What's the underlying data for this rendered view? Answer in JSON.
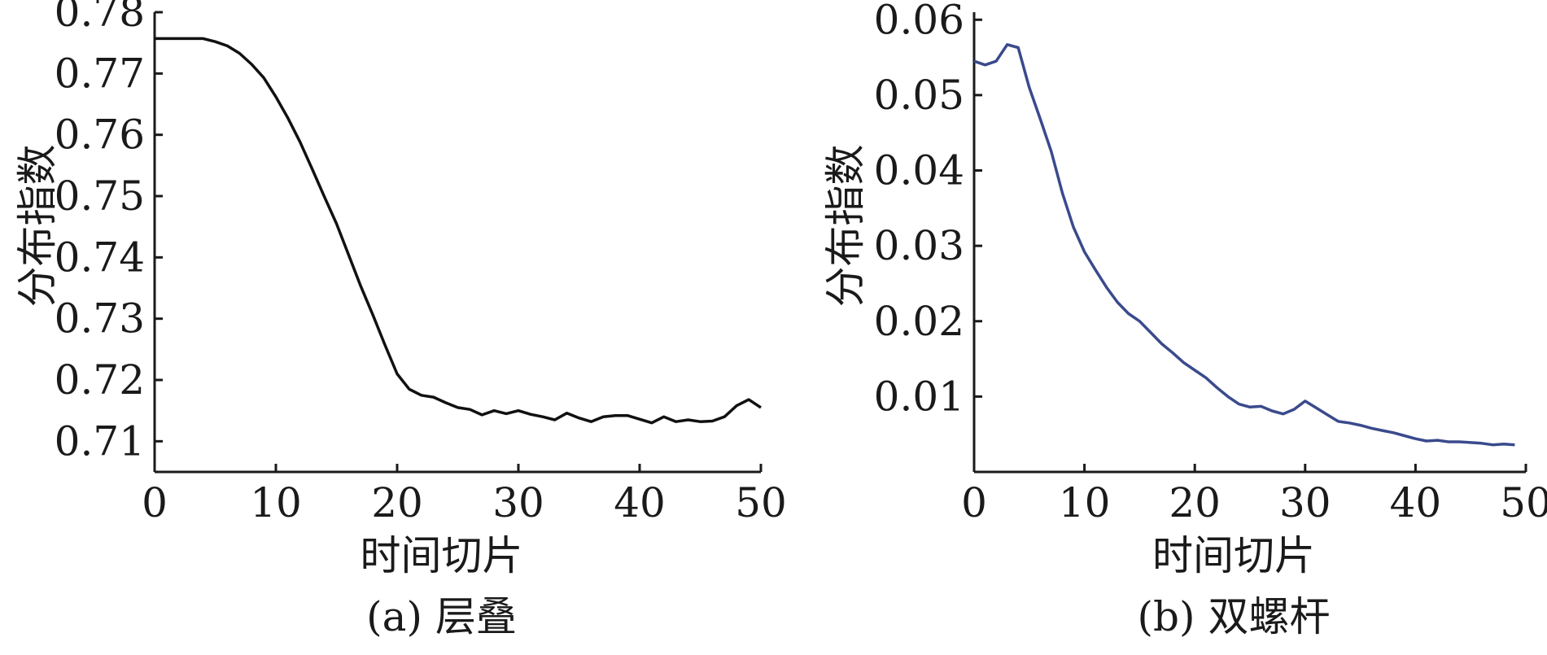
{
  "chart_data": [
    {
      "type": "line",
      "panel": "a",
      "caption": "(a) 层叠",
      "xlabel": "时间切片",
      "ylabel": "分布指数",
      "xlim": [
        0,
        50
      ],
      "ylim": [
        0.705,
        0.78
      ],
      "x_ticks": [
        "0",
        "10",
        "20",
        "30",
        "40",
        "50"
      ],
      "y_ticks": [
        "0.71",
        "0.72",
        "0.73",
        "0.74",
        "0.75",
        "0.76",
        "0.77",
        "0.78"
      ],
      "grid": false,
      "legend": "none",
      "color": "#111111",
      "series": [
        {
          "x": [
            0,
            1,
            2,
            3,
            4,
            5,
            6,
            7,
            8,
            9,
            10,
            11,
            12,
            13,
            14,
            15,
            16,
            17,
            18,
            19,
            20,
            21,
            22,
            23,
            24,
            25,
            26,
            27,
            28,
            29,
            30,
            31,
            32,
            33,
            34,
            35,
            36,
            37,
            38,
            39,
            40,
            41,
            42,
            43,
            44,
            45,
            46,
            47,
            48,
            49,
            50
          ],
          "values": [
            0.7757,
            0.7757,
            0.7757,
            0.7757,
            0.7757,
            0.7752,
            0.7745,
            0.7733,
            0.7715,
            0.7693,
            0.7662,
            0.7627,
            0.7588,
            0.7544,
            0.7499,
            0.7455,
            0.7404,
            0.7353,
            0.7306,
            0.7257,
            0.721,
            0.7185,
            0.7175,
            0.7172,
            0.7163,
            0.7155,
            0.7152,
            0.7143,
            0.715,
            0.7145,
            0.715,
            0.7144,
            0.714,
            0.7135,
            0.7146,
            0.7138,
            0.7132,
            0.714,
            0.7142,
            0.7142,
            0.7136,
            0.713,
            0.714,
            0.7132,
            0.7135,
            0.7132,
            0.7133,
            0.714,
            0.7158,
            0.7168,
            0.7155
          ]
        }
      ]
    },
    {
      "type": "line",
      "panel": "b",
      "caption": "(b) 双螺杆",
      "xlabel": "时间切片",
      "ylabel": "分布指数",
      "xlim": [
        0,
        50
      ],
      "ylim": [
        0,
        0.061
      ],
      "x_ticks": [
        "0",
        "10",
        "20",
        "30",
        "40",
        "50"
      ],
      "y_ticks": [
        "0.01",
        "0.02",
        "0.03",
        "0.04",
        "0.05",
        "0.06"
      ],
      "grid": false,
      "legend": "none",
      "color": "#3a4a8c",
      "series": [
        {
          "x": [
            0,
            1,
            2,
            3,
            4,
            5,
            6,
            7,
            8,
            9,
            10,
            11,
            12,
            13,
            14,
            15,
            16,
            17,
            18,
            19,
            20,
            21,
            22,
            23,
            24,
            25,
            26,
            27,
            28,
            29,
            30,
            31,
            32,
            33,
            34,
            35,
            36,
            37,
            38,
            39,
            40,
            41,
            42,
            43,
            44,
            45,
            46,
            47,
            48,
            49
          ],
          "values": [
            0.0545,
            0.054,
            0.0545,
            0.0567,
            0.0563,
            0.051,
            0.0468,
            0.0425,
            0.037,
            0.0325,
            0.0292,
            0.0268,
            0.0245,
            0.0225,
            0.021,
            0.02,
            0.0185,
            0.017,
            0.0158,
            0.0145,
            0.0135,
            0.0125,
            0.0112,
            0.01,
            0.009,
            0.0086,
            0.0087,
            0.0081,
            0.0077,
            0.0083,
            0.0094,
            0.0085,
            0.0076,
            0.0067,
            0.0065,
            0.0062,
            0.0058,
            0.0055,
            0.0052,
            0.0048,
            0.0044,
            0.0041,
            0.0042,
            0.004,
            0.004,
            0.0039,
            0.0038,
            0.0036,
            0.0037,
            0.0036
          ]
        }
      ]
    }
  ]
}
